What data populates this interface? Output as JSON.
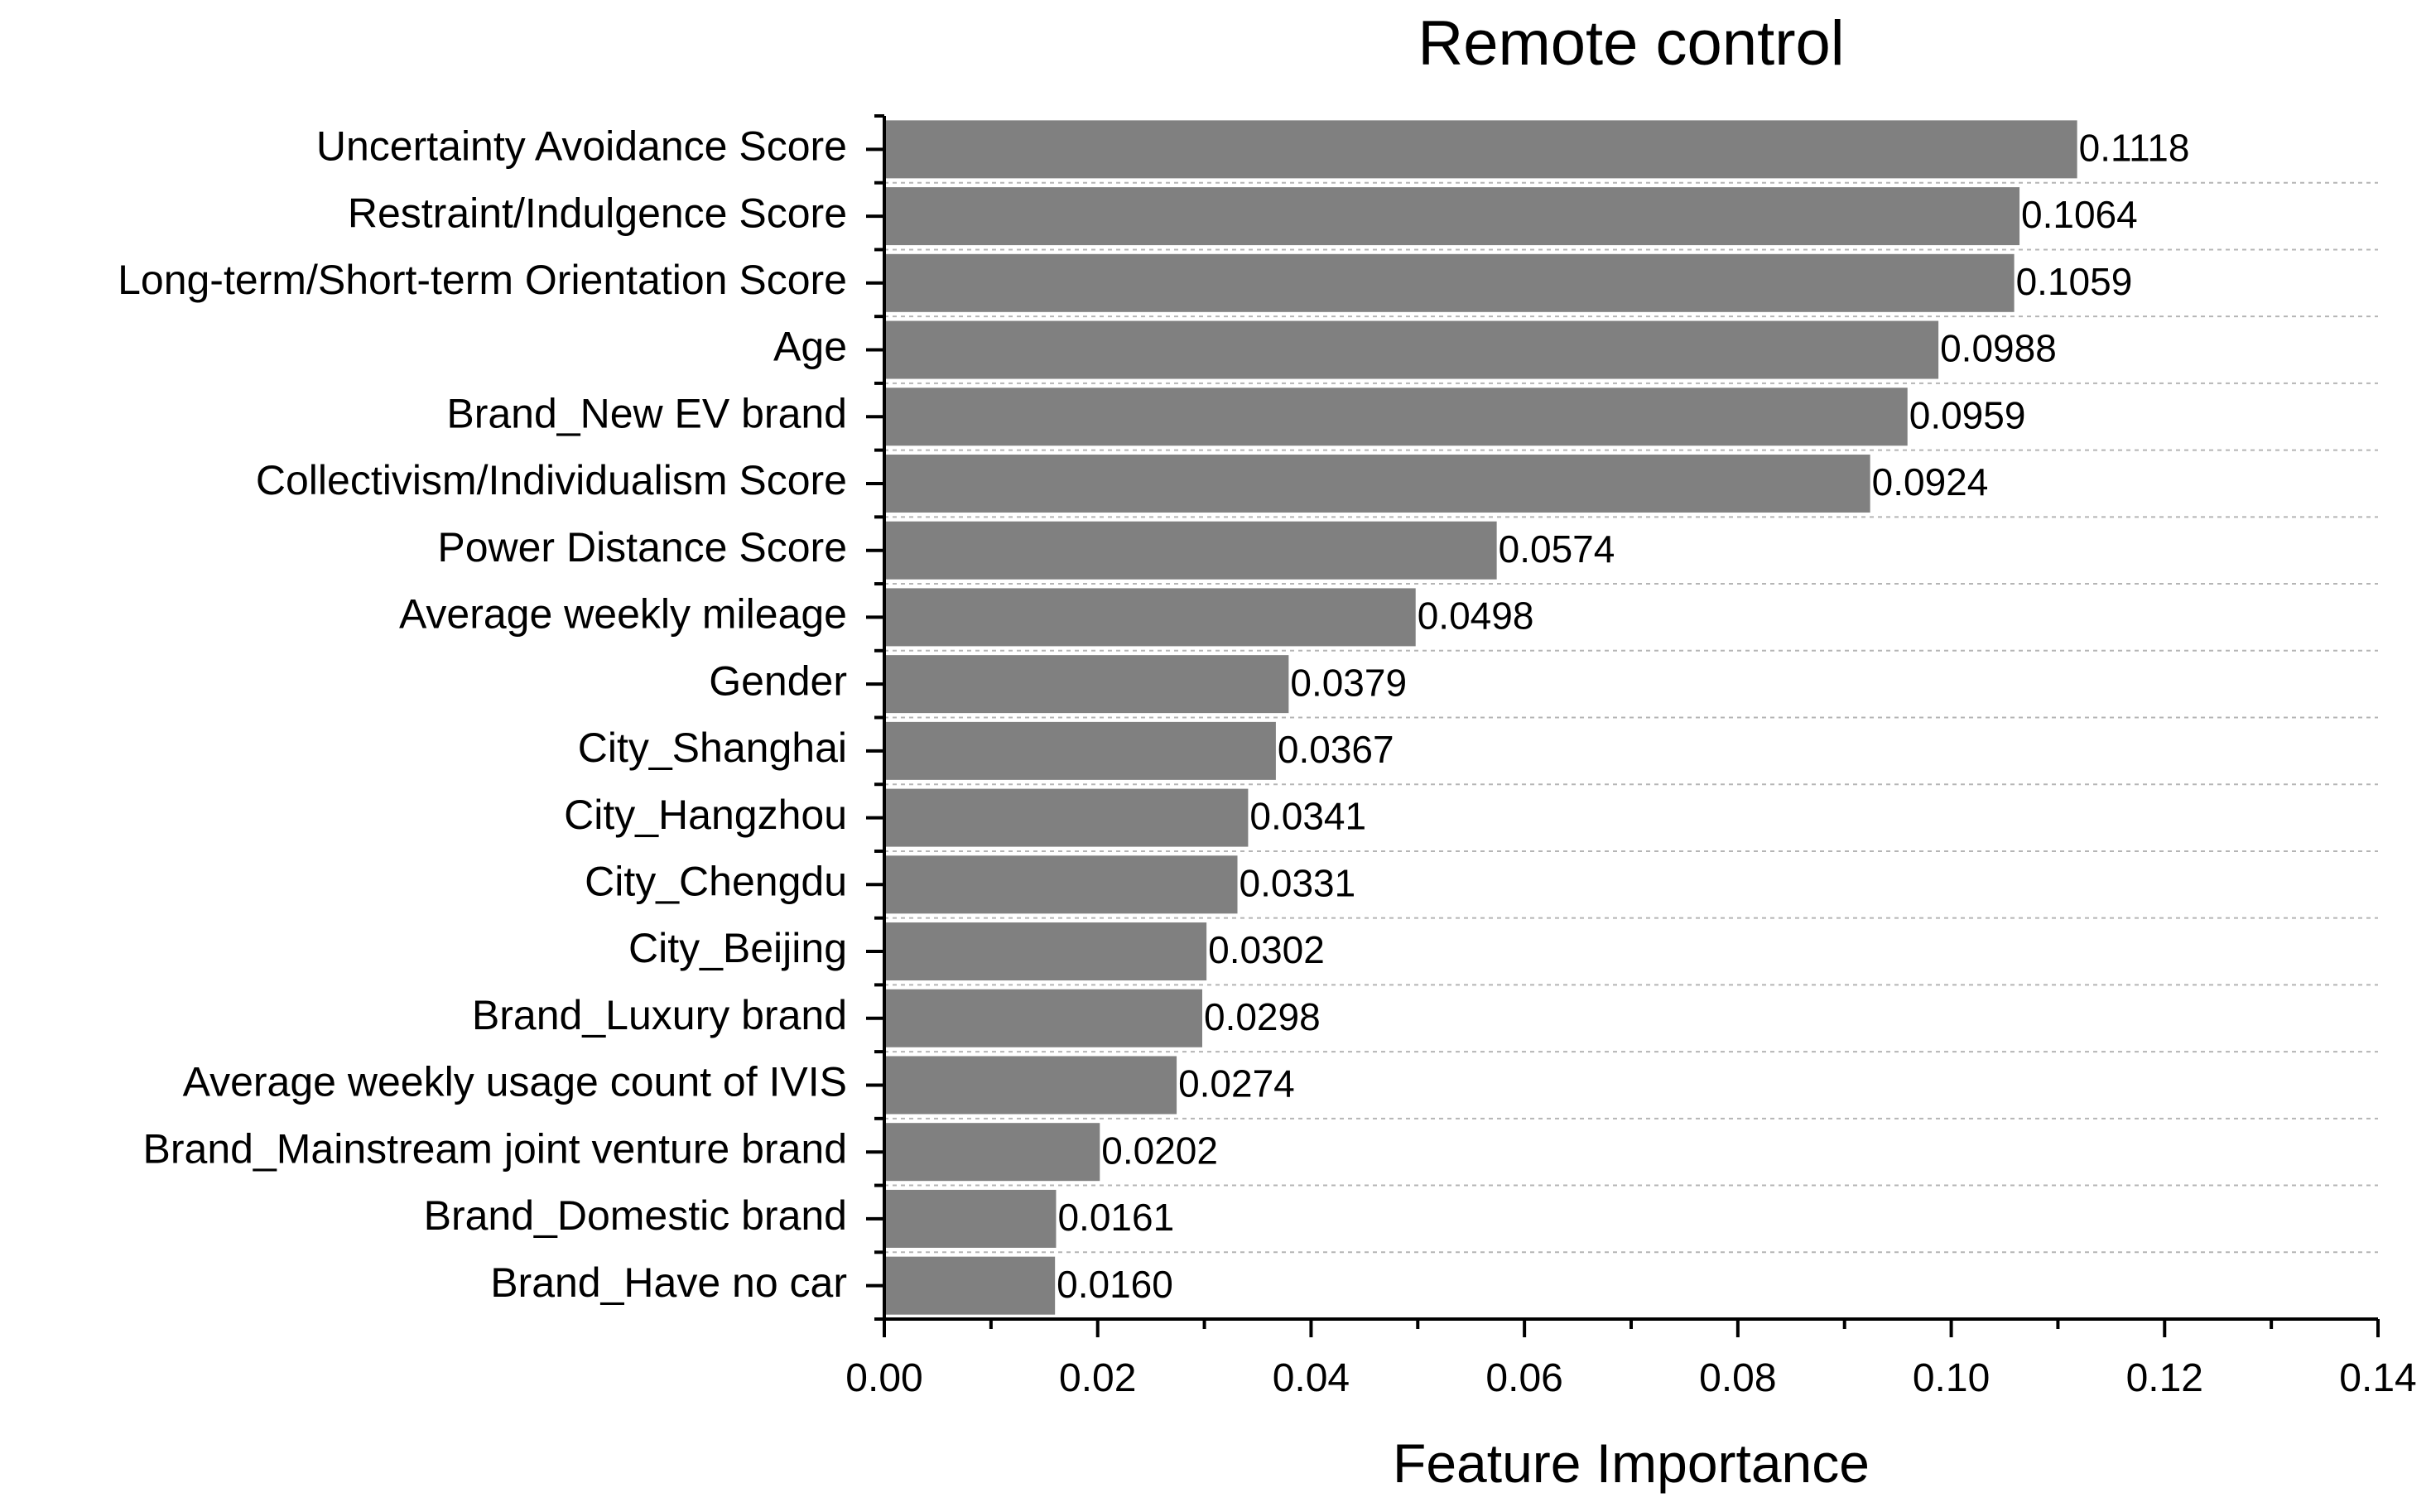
{
  "chart_data": {
    "type": "bar",
    "orientation": "horizontal",
    "title": "Remote control",
    "xlabel": "Feature Importance",
    "ylabel": "",
    "xlim": [
      0,
      0.14
    ],
    "x_ticks": [
      "0.00",
      "0.02",
      "0.04",
      "0.06",
      "0.08",
      "0.10",
      "0.12",
      "0.14"
    ],
    "grid": "horizontal dashed",
    "legend": "none",
    "bar_color": "#808080",
    "categories": [
      "Uncertainty Avoidance Score",
      "Restraint/Indulgence Score",
      "Long-term/Short-term Orientation Score",
      "Age",
      "Brand_New EV brand",
      "Collectivism/Individualism Score",
      "Power Distance Score",
      "Average weekly mileage",
      "Gender",
      "City_Shanghai",
      "City_Hangzhou",
      "City_Chengdu",
      "City_Beijing",
      "Brand_Luxury brand",
      "Average weekly usage count of IVIS",
      "Brand_Mainstream joint venture brand",
      "Brand_Domestic brand",
      "Brand_Have no car"
    ],
    "values": [
      0.1118,
      0.1064,
      0.1059,
      0.0988,
      0.0959,
      0.0924,
      0.0574,
      0.0498,
      0.0379,
      0.0367,
      0.0341,
      0.0331,
      0.0302,
      0.0298,
      0.0274,
      0.0202,
      0.0161,
      0.016
    ],
    "data_labels": [
      "0.1118",
      "0.1064",
      "0.1059",
      "0.0988",
      "0.0959",
      "0.0924",
      "0.0574",
      "0.0498",
      "0.0379",
      "0.0367",
      "0.0341",
      "0.0331",
      "0.0302",
      "0.0298",
      "0.0274",
      "0.0202",
      "0.0161",
      "0.0160"
    ]
  }
}
